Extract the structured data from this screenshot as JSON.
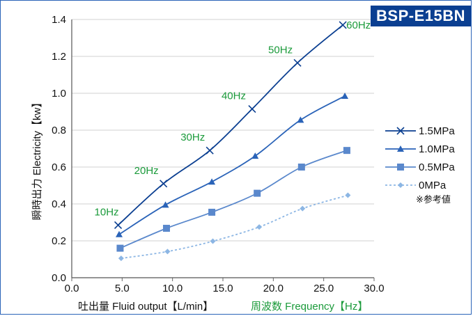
{
  "badge": "BSP-E15BN",
  "chart_data": {
    "type": "line",
    "ylabel": "瞬時出力 Electricity【kw】",
    "xlabel": "吐出量 Fluid output【L/min】",
    "xlabel2": "周波数 Frequency【Hz】",
    "xlim": [
      0,
      30
    ],
    "ylim": [
      0,
      1.4
    ],
    "x_ticks": [
      "0.0",
      "5.0",
      "10.0",
      "15.0",
      "20.0",
      "25.0",
      "30.0"
    ],
    "y_ticks": [
      "0.0",
      "0.2",
      "0.4",
      "0.6",
      "0.8",
      "1.0",
      "1.2",
      "1.4"
    ],
    "grid": "horizontal",
    "legend_position": "right",
    "series": [
      {
        "name": "1.5MPa",
        "marker": "x",
        "color": "#0b3f91",
        "x": [
          4.6,
          9.1,
          13.7,
          17.9,
          22.4,
          26.9
        ],
        "y": [
          0.285,
          0.51,
          0.69,
          0.915,
          1.165,
          1.37
        ]
      },
      {
        "name": "1.0MPa",
        "marker": "triangle",
        "color": "#2a63b8",
        "x": [
          4.7,
          9.3,
          13.9,
          18.2,
          22.7,
          27.1
        ],
        "y": [
          0.235,
          0.395,
          0.52,
          0.66,
          0.855,
          0.985
        ]
      },
      {
        "name": "0.5MPa",
        "marker": "square",
        "color": "#5a88cc",
        "x": [
          4.8,
          9.4,
          13.9,
          18.4,
          22.8,
          27.3
        ],
        "y": [
          0.16,
          0.268,
          0.355,
          0.458,
          0.6,
          0.69
        ]
      },
      {
        "name": "0MPa",
        "note": "※参考値",
        "marker": "diamond",
        "color": "#8cb6e4",
        "x": [
          4.9,
          9.5,
          14.0,
          18.6,
          22.9,
          27.4
        ],
        "y": [
          0.105,
          0.142,
          0.198,
          0.275,
          0.375,
          0.447
        ]
      }
    ],
    "annotations": [
      "10Hz",
      "20Hz",
      "30Hz",
      "40Hz",
      "50Hz",
      "60Hz"
    ]
  }
}
